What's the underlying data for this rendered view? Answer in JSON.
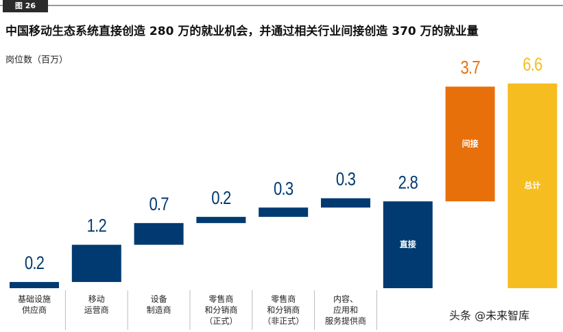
{
  "badge": "图 26",
  "chart_data": {
    "type": "waterfall",
    "title": "中国移动生态系统直接创造 280 万的就业机会，并通过相关行业间接创造 370 万的就业量",
    "y_label": "岗位数（百万）",
    "categories": [
      "基础设施\n供应商",
      "移动\n运营商",
      "设备\n制造商",
      "零售商\n和分销商\n（正式）",
      "零售商\n和分销商\n（非正式）",
      "内容、\n应用和\n服务提供商",
      null,
      null,
      null
    ],
    "bar_labels": [
      null,
      null,
      null,
      null,
      null,
      null,
      "直接",
      "间接",
      "总计"
    ],
    "values": [
      0.2,
      1.2,
      0.7,
      0.2,
      0.3,
      0.3,
      2.8,
      3.7,
      6.6
    ],
    "measure": [
      "relative",
      "relative",
      "relative",
      "relative",
      "relative",
      "relative",
      "total",
      "relative",
      "total"
    ],
    "colors": [
      "#003a70",
      "#003a70",
      "#003a70",
      "#003a70",
      "#003a70",
      "#003a70",
      "#003a70",
      "#e8700a",
      "#f5bd1f"
    ]
  },
  "watermark": "头条 @未来智库"
}
